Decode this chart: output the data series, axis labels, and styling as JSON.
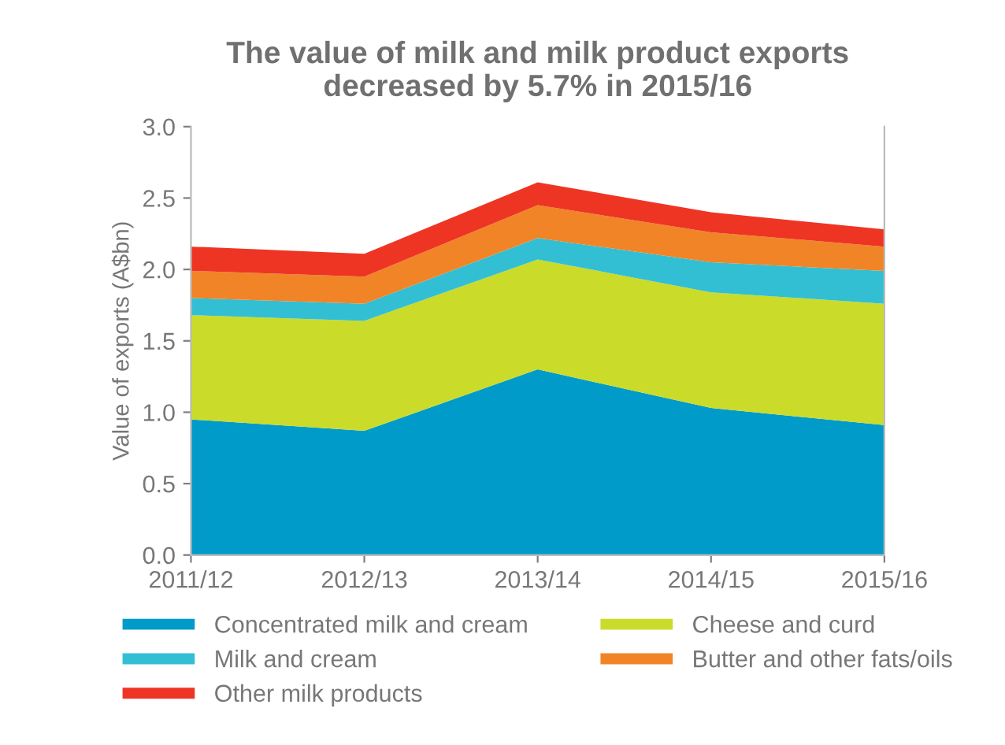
{
  "chart_data": {
    "type": "area",
    "stacked": true,
    "title": "The value of milk and milk product exports\ndecreased by 5.7% in 2015/16",
    "ylabel": "Value of exports (A$bn)",
    "categories": [
      "2011/12",
      "2012/13",
      "2013/14",
      "2014/15",
      "2015/16"
    ],
    "series": [
      {
        "name": "Concentrated milk and cream",
        "color": "#009bc8",
        "values": [
          0.95,
          0.87,
          1.3,
          1.03,
          0.91
        ]
      },
      {
        "name": "Cheese and curd",
        "color": "#cadb2a",
        "values": [
          0.73,
          0.77,
          0.77,
          0.81,
          0.85
        ]
      },
      {
        "name": "Milk and cream",
        "color": "#33bfd3",
        "values": [
          0.12,
          0.12,
          0.15,
          0.21,
          0.23
        ]
      },
      {
        "name": "Butter and other fats/oils",
        "color": "#f18426",
        "values": [
          0.19,
          0.19,
          0.23,
          0.21,
          0.17
        ]
      },
      {
        "name": "Other milk products",
        "color": "#ee3524",
        "values": [
          0.17,
          0.16,
          0.16,
          0.14,
          0.12
        ]
      }
    ],
    "ylim": [
      0,
      3.0
    ],
    "yticks": [
      {
        "value": 0,
        "label": "0.0"
      },
      {
        "value": 0.5,
        "label": "0.5"
      },
      {
        "value": 1.0,
        "label": "1.0"
      },
      {
        "value": 1.5,
        "label": "1.5"
      },
      {
        "value": 2.0,
        "label": "2.0"
      },
      {
        "value": 2.5,
        "label": "2.5"
      },
      {
        "value": 3.0,
        "label": "3.0"
      }
    ],
    "grid": false,
    "legend": "bottom"
  }
}
